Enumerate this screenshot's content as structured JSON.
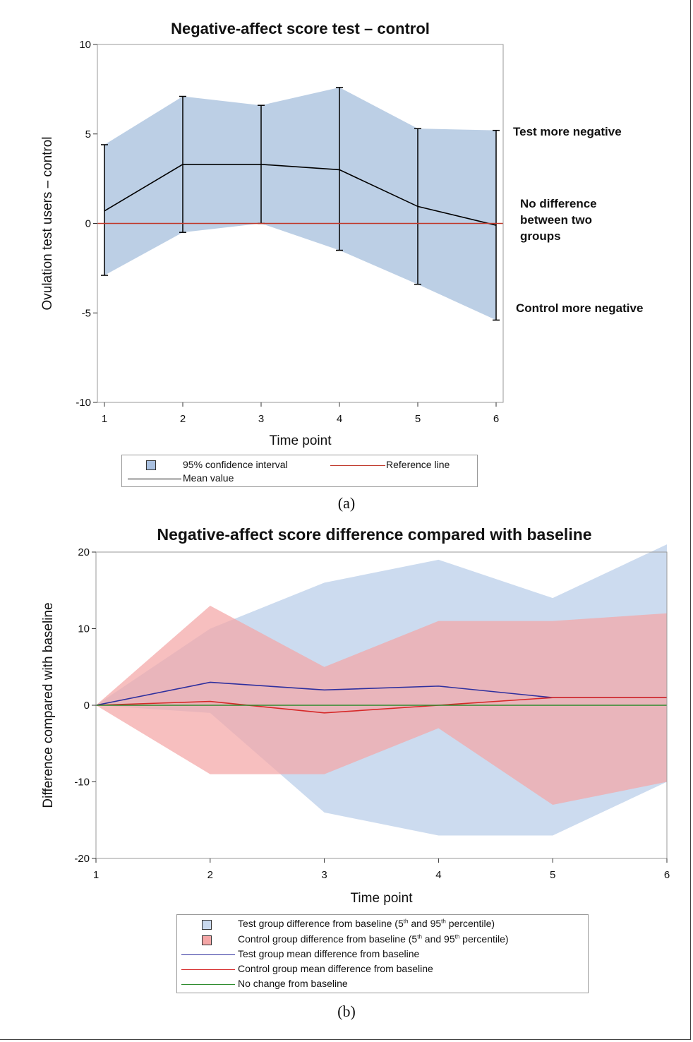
{
  "chart_data": [
    {
      "type": "line",
      "title": "Negative-affect score test – control",
      "xlabel": "Time point",
      "ylabel": "Ovulation test users – control",
      "x": [
        1,
        2,
        3,
        4,
        5,
        6
      ],
      "xlim": [
        1,
        6
      ],
      "ylim": [
        -10,
        10
      ],
      "xticks": [
        "1",
        "2",
        "3",
        "4",
        "5",
        "6"
      ],
      "yticks": [
        "10",
        "5",
        "0",
        "-5",
        "-10"
      ],
      "series": [
        {
          "name": "Mean value",
          "values": [
            0.7,
            3.3,
            3.3,
            3.0,
            0.95,
            -0.1
          ],
          "color": "#000000"
        },
        {
          "name": "95% confidence interval",
          "lower": [
            -2.9,
            -0.5,
            0.0,
            -1.5,
            -3.4,
            -5.4
          ],
          "upper": [
            4.4,
            7.1,
            6.6,
            7.6,
            5.3,
            5.2
          ],
          "color": "#b8cce4"
        },
        {
          "name": "Reference line",
          "values": [
            0,
            0,
            0,
            0,
            0,
            0
          ],
          "color": "#c0392b"
        }
      ],
      "annotations": [
        "Test more negative",
        "No difference between two groups",
        "Control more negative"
      ],
      "legend": [
        "95% confidence interval",
        "Reference line",
        "Mean value"
      ],
      "legend_placement": "bottom",
      "grid": false,
      "caption": "(a)"
    },
    {
      "type": "area",
      "title": "Negative-affect score difference compared with baseline",
      "xlabel": "Time point",
      "ylabel": "Difference compared with baseline",
      "x": [
        1,
        2,
        3,
        4,
        5,
        6
      ],
      "xlim": [
        1,
        6
      ],
      "ylim": [
        -20,
        20
      ],
      "xticks": [
        "1",
        "2",
        "3",
        "4",
        "5",
        "6"
      ],
      "yticks": [
        "20",
        "10",
        "0",
        "-10",
        "-20"
      ],
      "series": [
        {
          "name": "Test group difference from baseline (5th and 95th percentile)",
          "lower": [
            0,
            -1,
            -14,
            -17,
            -17,
            -10
          ],
          "upper": [
            0,
            10,
            16,
            19,
            14,
            21
          ],
          "color": "#c9d9ee"
        },
        {
          "name": "Control group difference from baseline (5th and 95th percentile)",
          "lower": [
            0,
            -9,
            -9,
            -3,
            -13,
            -10
          ],
          "upper": [
            0,
            13,
            5,
            11,
            11,
            12
          ],
          "color": "#f4a6a6"
        },
        {
          "name": "Test group mean difference from baseline",
          "values": [
            0,
            3,
            2,
            2.5,
            1,
            1
          ],
          "color": "#2e2f9e"
        },
        {
          "name": "Control group mean difference from baseline",
          "values": [
            0,
            0.5,
            -1,
            0,
            1,
            1
          ],
          "color": "#d62828"
        },
        {
          "name": "No change from baseline",
          "values": [
            0,
            0,
            0,
            0,
            0,
            0
          ],
          "color": "#2e8b2e"
        }
      ],
      "legend": [
        {
          "pre": "Test group difference from baseline (5",
          "sup1": "th",
          "mid": " and 95",
          "sup2": "th",
          "post": " percentile)"
        },
        {
          "pre": "Control group difference from baseline (5",
          "sup1": "th",
          "mid": " and 95",
          "sup2": "th",
          "post": " percentile)"
        },
        "Test group mean difference from baseline",
        "Control group mean difference from baseline",
        "No change from baseline"
      ],
      "legend_placement": "bottom",
      "grid": false,
      "caption": "(b)"
    }
  ]
}
